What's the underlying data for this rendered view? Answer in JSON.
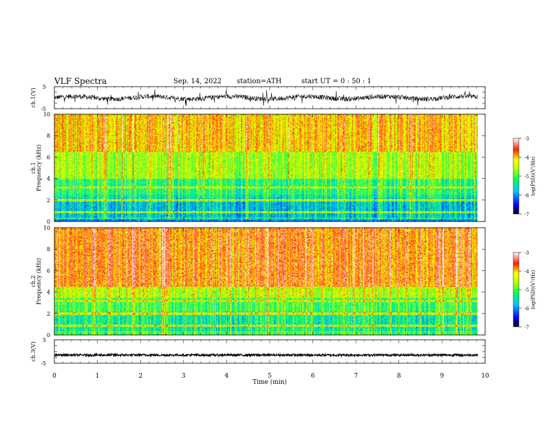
{
  "header": {
    "title": "VLF  Spectra",
    "date": "Sep. 14, 2022",
    "station": "station=ATH",
    "start": "start  UT  =    0  : 50 : 1"
  },
  "chart_data": [
    {
      "type": "line",
      "ylabel": "ch.1(V)",
      "ylim": [
        -5,
        5
      ],
      "xlim": [
        0,
        10
      ],
      "ticks_y": [
        "5",
        "-5"
      ],
      "x_extent": 9.83,
      "signal": "noisy waveform, amplitude about ±1.5 V with spikes to ±4 V"
    },
    {
      "type": "heatmap",
      "ylabel_line1": "ch.1",
      "ylabel_line2": "Frequency  (kHz)",
      "ylim": [
        0,
        10
      ],
      "xlim": [
        0,
        10
      ],
      "yticks": [
        "0",
        "2",
        "4",
        "6",
        "8",
        "10"
      ],
      "colorbar": {
        "label": "log(PSD)(V²/Hz)",
        "range": [
          -7,
          -3
        ],
        "ticks": [
          "-3",
          "-4",
          "-5",
          "-6",
          "-7"
        ]
      }
    },
    {
      "type": "heatmap",
      "ylabel_line1": "ch.2",
      "ylabel_line2": "Frequency  (kHz)",
      "ylim": [
        0,
        10
      ],
      "xlim": [
        0,
        10
      ],
      "yticks": [
        "0",
        "2",
        "4",
        "6",
        "8",
        "10"
      ],
      "colorbar": {
        "label": "log(PSD)(V²/Hz)",
        "range": [
          -7,
          -3
        ],
        "ticks": [
          "-3",
          "-4",
          "-5",
          "-6",
          "-7"
        ]
      }
    },
    {
      "type": "line",
      "ylabel": "ch.3(V)",
      "ylim": [
        -5,
        5
      ],
      "xlim": [
        0,
        10
      ],
      "ticks_y": [
        "5",
        "-5"
      ],
      "x_extent": 9.83,
      "signal": "flat band near -1.5 V"
    }
  ],
  "xaxis": {
    "label": "Time  (min)",
    "ticks": [
      "0",
      "1",
      "2",
      "3",
      "4",
      "5",
      "6",
      "7",
      "8",
      "9",
      "10"
    ]
  }
}
